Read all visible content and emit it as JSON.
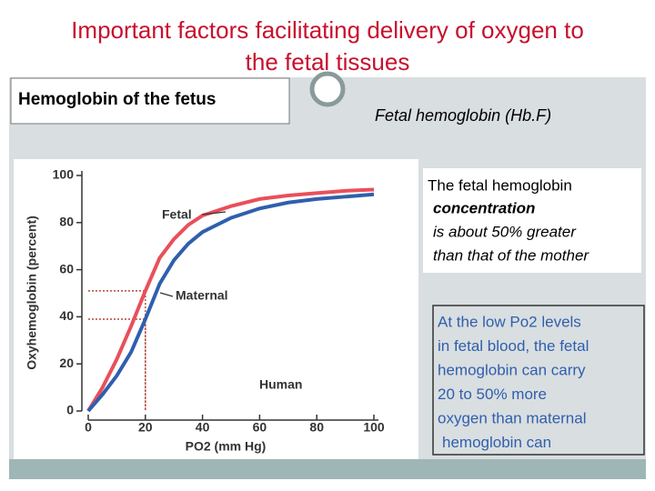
{
  "slide": {
    "title": [
      "Important factors facilitating delivery of oxygen to",
      "the fetal tissues"
    ],
    "left_heading": "Hemoglobin of the fetus",
    "right_heading": "Fetal hemoglobin (Hb.F)",
    "text_box_1": [
      "The fetal hemoglobin",
      "concentration",
      "is about 50% greater",
      "than that of the mother"
    ],
    "text_box_2": [
      "At the low Po2 levels",
      "in fetal blood, the fetal",
      "hemoglobin can carry",
      "20 to 50% more",
      "oxygen than maternal",
      "hemoglobin can"
    ]
  },
  "chart_data": {
    "type": "line",
    "x_label": "PO2 (mm Hg)",
    "y_label": "Oxyhemoglobin (percent)",
    "annotation": "Human",
    "x": [
      0,
      5,
      10,
      15,
      20,
      25,
      30,
      35,
      40,
      50,
      60,
      70,
      80,
      90,
      100
    ],
    "series": [
      {
        "name": "Fetal",
        "color": "#e8505b",
        "values": [
          0,
          10,
          22,
          36,
          51,
          65,
          73,
          79,
          83,
          87,
          90,
          91.5,
          92.5,
          93.5,
          94
        ]
      },
      {
        "name": "Maternal",
        "color": "#2f5fae",
        "values": [
          0,
          7,
          15,
          25,
          39,
          54,
          64,
          71,
          76,
          82,
          86,
          88.5,
          90,
          91,
          92
        ]
      }
    ],
    "reference_lines": [
      {
        "x": 20,
        "y": 51
      },
      {
        "x": 20,
        "y": 39
      }
    ],
    "xlim": [
      0,
      100
    ],
    "ylim": [
      0,
      100
    ],
    "xticks": [
      0,
      20,
      40,
      60,
      80,
      100
    ],
    "yticks": [
      0,
      20,
      40,
      60,
      80,
      100
    ]
  }
}
